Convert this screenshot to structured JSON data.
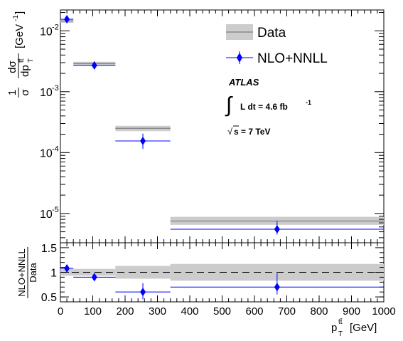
{
  "chart_data": {
    "type": "scatter",
    "bins": [
      {
        "lo": 0,
        "hi": 40
      },
      {
        "lo": 40,
        "hi": 170
      },
      {
        "lo": 170,
        "hi": 340
      },
      {
        "lo": 340,
        "hi": 1000
      }
    ],
    "series": [
      {
        "name": "Data",
        "style": "band",
        "color": "#808080",
        "band_color": "#cccccc",
        "values": [
          0.0145,
          0.0029,
          0.00025,
          7.5e-06
        ],
        "band_lo": [
          0.0135,
          0.0027,
          0.000225,
          6.5e-06
        ],
        "band_hi": [
          0.0155,
          0.0031,
          0.000275,
          8.8e-06
        ]
      },
      {
        "name": "NLO+NNLL",
        "style": "marker",
        "color": "#0000ff",
        "x": [
          20,
          105,
          255,
          670
        ],
        "values": [
          0.0155,
          0.0027,
          0.000155,
          5.5e-06
        ],
        "err_lo": [
          0.0145,
          0.0025,
          0.000115,
          4.5e-06
        ],
        "err_hi": [
          0.0165,
          0.0029,
          0.000205,
          7.5e-06
        ]
      }
    ],
    "ratio": {
      "ylabel_num": "NLO+NNLL",
      "ylabel_den": "Data",
      "ylim": [
        0.4,
        1.6
      ],
      "yticks": [
        "0.5",
        "1",
        "1.5"
      ],
      "band_lo": [
        0.93,
        0.93,
        0.87,
        0.83
      ],
      "band_hi": [
        1.07,
        1.07,
        1.13,
        1.17
      ],
      "values": [
        1.08,
        0.9,
        0.6,
        0.7
      ],
      "err_lo": [
        1.03,
        0.84,
        0.45,
        0.55
      ],
      "err_hi": [
        1.13,
        0.96,
        0.78,
        0.98
      ]
    },
    "xlim": [
      0,
      1000
    ],
    "xticks": [
      "0",
      "100",
      "200",
      "300",
      "400",
      "500",
      "600",
      "700",
      "800",
      "900",
      "1000"
    ],
    "ylim": [
      3.3e-06,
      0.022
    ],
    "yscale": "log",
    "ylabel": "1/σ dσ/dp_T^{tt̄} [GeV^-1]",
    "xlabel": "p_T^{tt̄} [GeV]",
    "legend_position": "top-right"
  },
  "text": {
    "ylabel_one": "1",
    "ylabel_sigma": "σ",
    "ylabel_dsigma": "dσ",
    "ylabel_dp": "dp",
    "ylabel_sub_T": "T",
    "ylabel_sup_tt": "tt̄",
    "ylabel_unit": "[GeV",
    "ylabel_unit_exp": "-1",
    "ylabel_unit_close": "]",
    "xlabel_p": "p",
    "xlabel_sub_T": "T",
    "xlabel_sup_tt": "tt̄",
    "xlabel_unit": "[GeV]",
    "ytick_base": "10",
    "ytick_exps": [
      "-2",
      "-3",
      "-4",
      "-5"
    ],
    "atlas": "ATLAS",
    "lumi_integral": "∫",
    "lumi_text": "L dt = 4.6 fb",
    "lumi_exp": "-1",
    "energy_text": "s = 7 TeV",
    "energy_sqrt": "√"
  }
}
